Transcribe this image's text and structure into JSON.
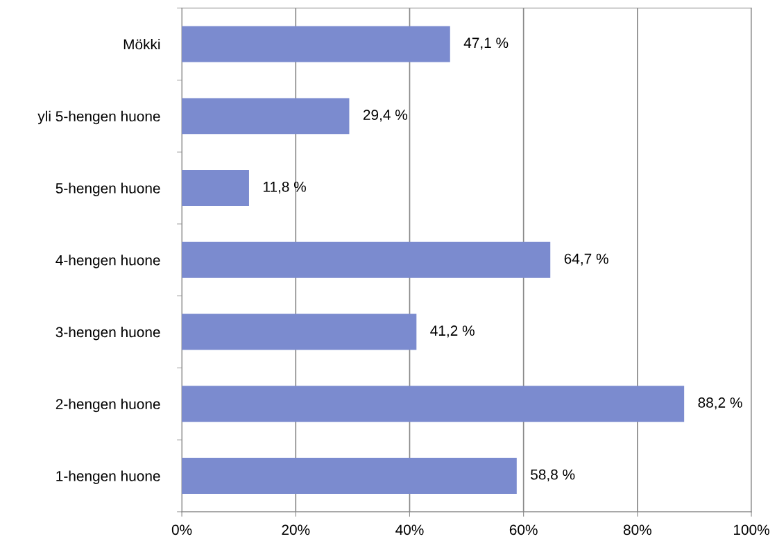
{
  "chart_data": {
    "type": "bar",
    "orientation": "horizontal",
    "categories": [
      "Mökki",
      "yli 5-hengen huone",
      "5-hengen huone",
      "4-hengen huone",
      "3-hengen huone",
      "2-hengen huone",
      "1-hengen huone"
    ],
    "values": [
      47.1,
      29.4,
      11.8,
      64.7,
      41.2,
      88.2,
      58.8
    ],
    "value_labels": [
      "47,1 %",
      "29,4 %",
      "11,8 %",
      "64,7 %",
      "41,2 %",
      "88,2 %",
      "58,8 %"
    ],
    "color": "#7b8bcf",
    "xlim": [
      0,
      100
    ],
    "xticks": [
      {
        "value": 0,
        "label": "0%"
      },
      {
        "value": 20,
        "label": "20%"
      },
      {
        "value": 40,
        "label": "40%"
      },
      {
        "value": 60,
        "label": "60%"
      },
      {
        "value": 80,
        "label": "80%"
      },
      {
        "value": 100,
        "label": "100%"
      }
    ],
    "grid": "x"
  }
}
